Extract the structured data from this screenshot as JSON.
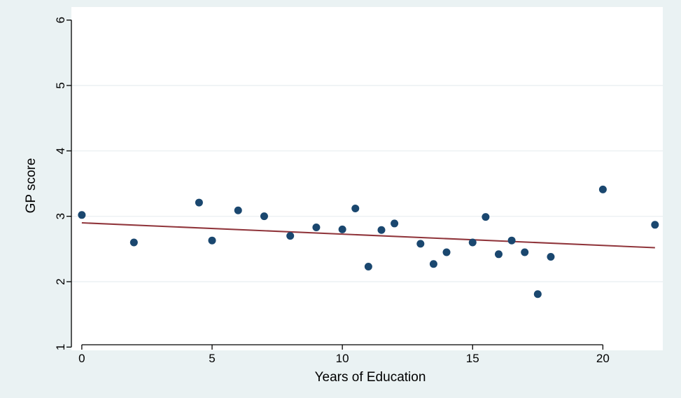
{
  "colors": {
    "outer_background": "#eaf2f3",
    "plot_background": "#ffffff",
    "grid": "#e8eef0",
    "points": "#1a476f",
    "fit_line": "#90353b",
    "axis": "#000000"
  },
  "chart_data": {
    "type": "scatter",
    "title": "",
    "xlabel": "Years of Education",
    "ylabel": "GP score",
    "xlim": [
      -0.4,
      22.3
    ],
    "ylim": [
      0.95,
      6.2
    ],
    "xticks": [
      "0",
      "5",
      "10",
      "15",
      "20"
    ],
    "yticks": [
      "1",
      "2",
      "3",
      "4",
      "5",
      "6"
    ],
    "grid": "horizontal",
    "legend": "none",
    "series": [
      {
        "kind": "points",
        "x": [
          0,
          2,
          4.5,
          5,
          6,
          7,
          8,
          9,
          10,
          10.5,
          11,
          11.5,
          12,
          13,
          13.5,
          14,
          15,
          15.5,
          16,
          16.5,
          17,
          17.5,
          18,
          20,
          22
        ],
        "y": [
          3.02,
          2.6,
          3.21,
          2.63,
          3.09,
          3.0,
          2.7,
          2.83,
          2.8,
          3.12,
          2.23,
          2.79,
          2.89,
          2.58,
          2.27,
          2.45,
          2.6,
          2.99,
          2.42,
          2.63,
          2.45,
          1.81,
          2.38,
          3.41,
          2.87
        ]
      },
      {
        "kind": "fitted-line",
        "x": [
          0,
          22
        ],
        "y": [
          2.9,
          2.52
        ]
      }
    ]
  }
}
